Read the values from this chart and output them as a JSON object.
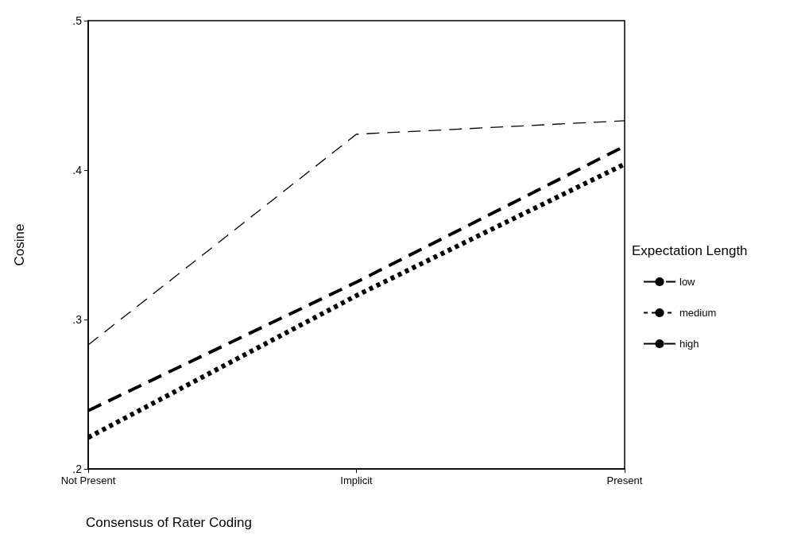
{
  "chart_data": {
    "type": "line",
    "xlabel": "Consensus of Rater Coding",
    "ylabel": "Cosine",
    "legend_title": "Expectation Length",
    "legend": "right",
    "categories": [
      "Not Present",
      "Implicit",
      "Present"
    ],
    "ylim": [
      0.2,
      0.5
    ],
    "yticks": [
      {
        "value": 0.2,
        "label": ".2"
      },
      {
        "value": 0.3,
        "label": ".3"
      },
      {
        "value": 0.4,
        "label": ".4"
      },
      {
        "value": 0.5,
        "label": ".5"
      }
    ],
    "grid": false,
    "marker": "none",
    "series": [
      {
        "name": "low",
        "color": "#000000",
        "line_style": "dashed",
        "values": [
          0.239,
          0.325,
          0.416
        ]
      },
      {
        "name": "medium",
        "color": "#000000",
        "line_style": "dotted",
        "values": [
          0.221,
          0.316,
          0.404
        ]
      },
      {
        "name": "high",
        "color": "#000000",
        "line_style": "dashed",
        "values": [
          0.283,
          0.424,
          0.433
        ]
      }
    ]
  }
}
